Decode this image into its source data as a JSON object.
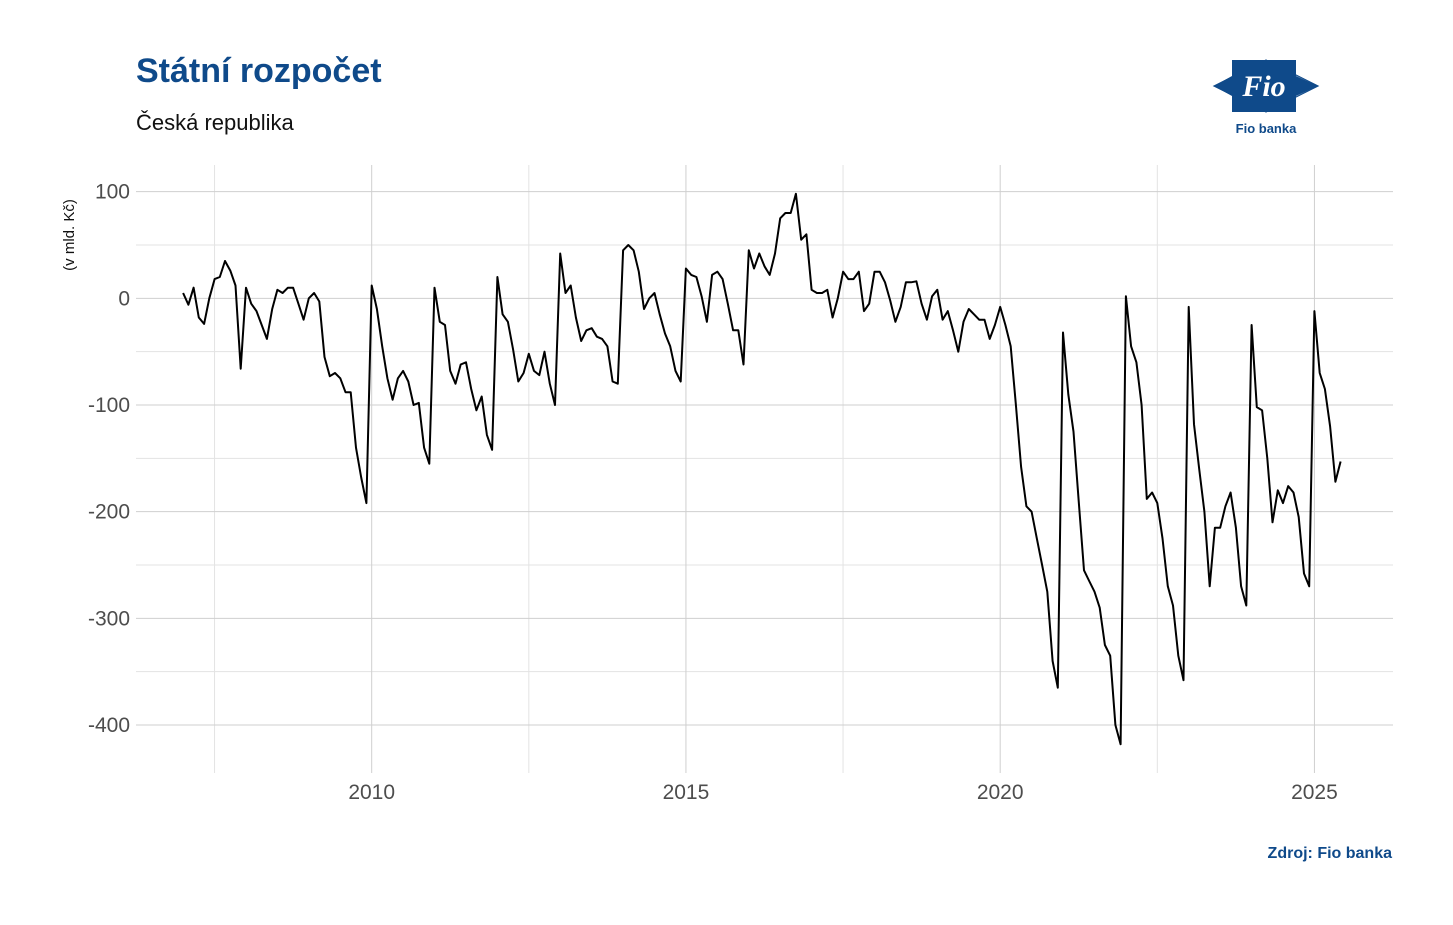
{
  "header": {
    "title": "Státní rozpočet",
    "subtitle": "Česká republika"
  },
  "logo": {
    "text": "Fio banka",
    "mark_text": "Fio",
    "icon": "fio-logo-icon",
    "color": "#0f4a8a"
  },
  "source": "Zdroj: Fio banka",
  "chart_data": {
    "type": "line",
    "title": "Státní rozpočet",
    "subtitle": "Česká republika",
    "xlabel": "",
    "ylabel": "(v mld. Kč)",
    "xlim": [
      2006.25,
      2026.25
    ],
    "ylim": [
      -445,
      125
    ],
    "x_ticks": [
      2010,
      2015,
      2020,
      2025
    ],
    "x_tick_labels": [
      "2010",
      "2015",
      "2020",
      "2025"
    ],
    "y_ticks": [
      100,
      0,
      -100,
      -200,
      -300,
      -400
    ],
    "y_tick_labels": [
      "100",
      "0",
      "-100",
      "-200",
      "-300",
      "-400"
    ],
    "grid": true,
    "legend": "none",
    "line_color": "#000000",
    "series": [
      {
        "x_start": 2007.0,
        "x_step": 0.083333,
        "values": [
          5,
          -6,
          10,
          -18,
          -24,
          0,
          18,
          20,
          35,
          26,
          12,
          -66,
          10,
          -5,
          -12,
          -25,
          -38,
          -10,
          8,
          5,
          10,
          10,
          -5,
          -20,
          0,
          5,
          -3,
          -55,
          -73,
          -70,
          -75,
          -88,
          -88,
          -140,
          -168,
          -192,
          12,
          -10,
          -45,
          -75,
          -95,
          -75,
          -68,
          -78,
          -100,
          -98,
          -140,
          -155,
          10,
          -22,
          -25,
          -68,
          -80,
          -62,
          -60,
          -85,
          -105,
          -92,
          -128,
          -142,
          20,
          -15,
          -22,
          -48,
          -78,
          -70,
          -52,
          -68,
          -72,
          -50,
          -80,
          -100,
          42,
          5,
          12,
          -18,
          -40,
          -30,
          -28,
          -36,
          -38,
          -45,
          -78,
          -80,
          45,
          50,
          45,
          25,
          -10,
          0,
          5,
          -15,
          -33,
          -45,
          -68,
          -78,
          28,
          22,
          20,
          2,
          -22,
          22,
          25,
          18,
          -5,
          -30,
          -30,
          -62,
          45,
          28,
          42,
          30,
          22,
          42,
          75,
          80,
          80,
          98,
          55,
          60,
          8,
          5,
          5,
          8,
          -18,
          0,
          25,
          18,
          18,
          25,
          -12,
          -5,
          25,
          25,
          15,
          -2,
          -22,
          -8,
          15,
          15,
          16,
          -5,
          -20,
          2,
          8,
          -20,
          -12,
          -30,
          -50,
          -22,
          -10,
          -15,
          -20,
          -20,
          -38,
          -25,
          -8,
          -25,
          -45,
          -100,
          -158,
          -195,
          -200,
          -225,
          -250,
          -275,
          -340,
          -365,
          -32,
          -90,
          -125,
          -190,
          -255,
          -265,
          -275,
          -290,
          -325,
          -335,
          -400,
          -418,
          2,
          -45,
          -60,
          -100,
          -188,
          -182,
          -192,
          -225,
          -270,
          -288,
          -335,
          -358,
          -8,
          -118,
          -160,
          -200,
          -270,
          -215,
          -215,
          -195,
          -182,
          -215,
          -270,
          -288,
          -25,
          -102,
          -105,
          -150,
          -210,
          -180,
          -192,
          -176,
          -182,
          -205,
          -258,
          -270,
          -12,
          -70,
          -85,
          -120,
          -172,
          -153
        ]
      }
    ]
  }
}
